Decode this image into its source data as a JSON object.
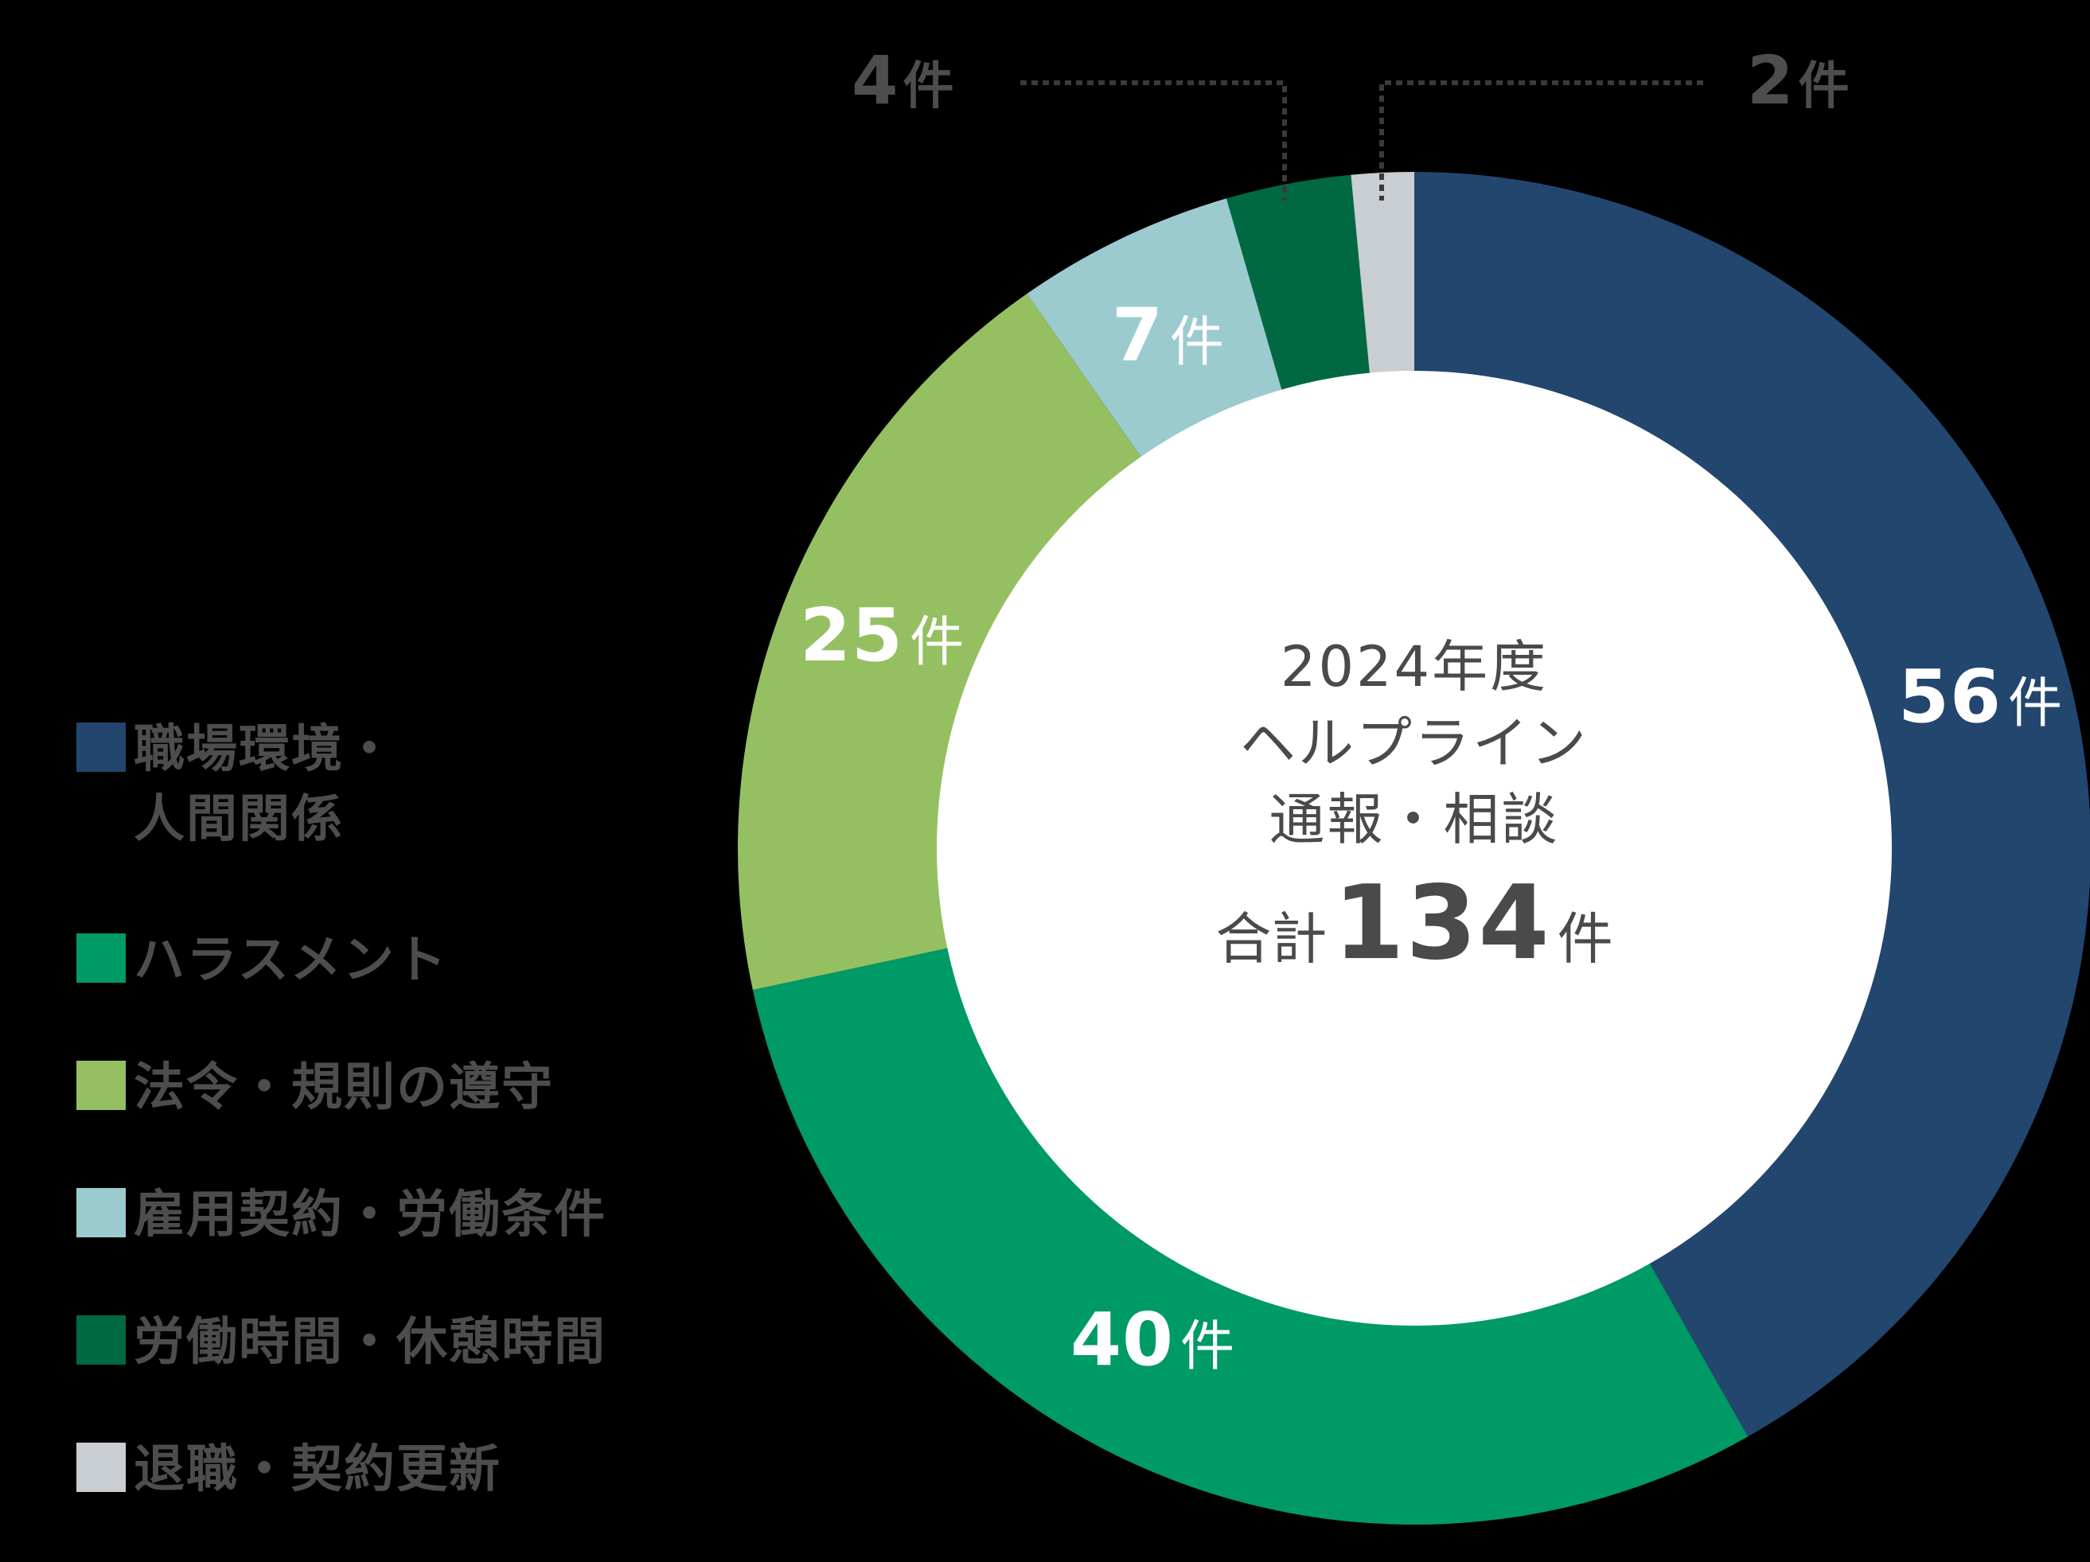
{
  "chart_data": {
    "type": "pie",
    "subtype": "donut",
    "title": "2024年度 ヘルプライン 通報・相談 合計134件",
    "total": 134,
    "unit": "件",
    "start_angle_deg": 0,
    "direction": "clockwise",
    "legend_position": "left",
    "categories": [
      "職場環境・人間関係",
      "ハラスメント",
      "法令・規則の遵守",
      "雇用契約・労働条件",
      "労働時間・休憩時間",
      "退職・契約更新"
    ],
    "values": [
      56,
      40,
      25,
      7,
      4,
      2
    ],
    "colors": [
      "#23466e",
      "#009a66",
      "#95c062",
      "#9ccbcf",
      "#006942",
      "#c9ced2"
    ]
  },
  "legend": {
    "items": [
      {
        "label": "職場環境・\n人間関係",
        "color": "#23466e"
      },
      {
        "label": "ハラスメント",
        "color": "#009a66"
      },
      {
        "label": "法令・規則の遵守",
        "color": "#95c062"
      },
      {
        "label": "雇用契約・労働条件",
        "color": "#9ccbcf"
      },
      {
        "label": "労働時間・休憩時間",
        "color": "#006942"
      },
      {
        "label": "退職・契約更新",
        "color": "#c9ced2"
      }
    ]
  },
  "center": {
    "line1": "2024年度",
    "line2": "ヘルプライン",
    "line3": "通報・相談",
    "total_prefix": "合計",
    "total_value": "134",
    "total_unit": "件"
  },
  "slice_labels": [
    {
      "num": "56",
      "unit": "件"
    },
    {
      "num": "40",
      "unit": "件"
    },
    {
      "num": "25",
      "unit": "件"
    },
    {
      "num": "7",
      "unit": "件"
    }
  ],
  "callouts": [
    {
      "num": "4",
      "unit": "件"
    },
    {
      "num": "2",
      "unit": "件"
    }
  ],
  "colors": {
    "background": "#000000",
    "center_fill": "#ffffff",
    "text_dark": "#4a4a4a",
    "leader_line": "#3a3a3a"
  }
}
